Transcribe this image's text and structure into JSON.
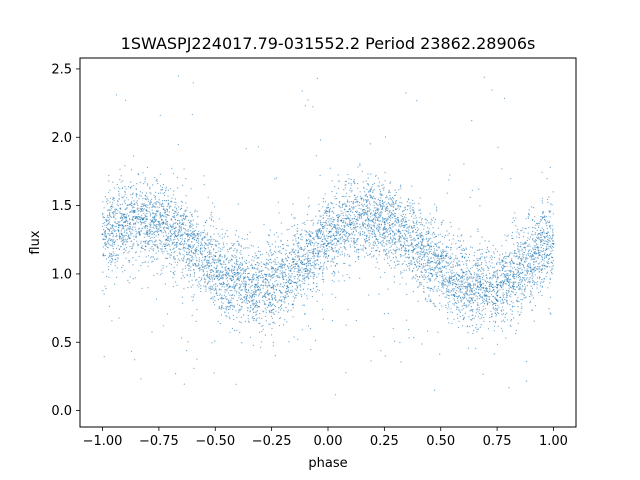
{
  "chart_data": {
    "type": "scatter",
    "title": "1SWASPJ224017.79-031552.2 Period 23862.28906s",
    "xlabel": "phase",
    "ylabel": "flux",
    "xlim": [
      -1.1,
      1.1
    ],
    "ylim": [
      -0.12,
      2.58
    ],
    "x_ticks": [
      -1.0,
      -0.75,
      -0.5,
      -0.25,
      0.0,
      0.25,
      0.5,
      0.75,
      1.0
    ],
    "x_tick_labels": [
      "−1.00",
      "−0.75",
      "−0.50",
      "−0.25",
      "0.00",
      "0.25",
      "0.50",
      "0.75",
      "1.00"
    ],
    "y_ticks": [
      0.0,
      0.5,
      1.0,
      1.5,
      2.0,
      2.5
    ],
    "y_tick_labels": [
      "0.0",
      "0.5",
      "1.0",
      "1.5",
      "2.0",
      "2.5"
    ],
    "grid": false,
    "marker_color": "#1f77b4",
    "folded_light_curve": {
      "phase_range": [
        -1.0,
        1.0
      ],
      "mean_flux": 1.15,
      "amplitude": 0.25,
      "cycles_per_unit_phase": 1.0,
      "phase_of_maximum": 0.18,
      "noise_sigma": 0.15
    },
    "points": [
      {
        "x": -1.0,
        "y": 1.29
      },
      {
        "x": -0.9,
        "y": 1.38
      },
      {
        "x": -0.82,
        "y": 1.4
      },
      {
        "x": -0.75,
        "y": 1.38
      },
      {
        "x": -0.6,
        "y": 1.26
      },
      {
        "x": -0.5,
        "y": 1.13
      },
      {
        "x": -0.4,
        "y": 1.01
      },
      {
        "x": -0.32,
        "y": 0.92
      },
      {
        "x": -0.25,
        "y": 0.9
      },
      {
        "x": -0.18,
        "y": 0.91
      },
      {
        "x": -0.1,
        "y": 1.02
      },
      {
        "x": 0.0,
        "y": 1.22
      },
      {
        "x": 0.1,
        "y": 1.36
      },
      {
        "x": 0.18,
        "y": 1.4
      },
      {
        "x": 0.25,
        "y": 1.38
      },
      {
        "x": 0.4,
        "y": 1.26
      },
      {
        "x": 0.5,
        "y": 1.13
      },
      {
        "x": 0.6,
        "y": 1.01
      },
      {
        "x": 0.68,
        "y": 0.92
      },
      {
        "x": 0.75,
        "y": 0.9
      },
      {
        "x": 0.82,
        "y": 0.91
      },
      {
        "x": 0.9,
        "y": 1.02
      },
      {
        "x": 1.0,
        "y": 1.22
      }
    ]
  }
}
